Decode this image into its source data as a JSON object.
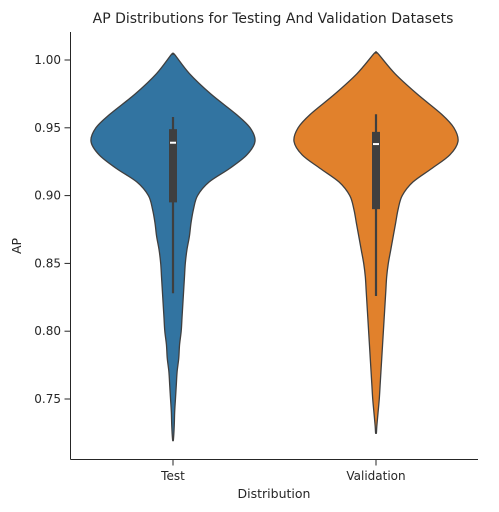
{
  "chart_data": {
    "type": "violin",
    "title": "AP Distributions for Testing And Validation Datasets",
    "xlabel": "Distribution",
    "ylabel": "AP",
    "ylim": [
      0.705,
      1.02
    ],
    "yticks": [
      0.75,
      0.8,
      0.85,
      0.9,
      0.95,
      1.0
    ],
    "ytick_labels": [
      "0.75",
      "0.80",
      "0.85",
      "0.90",
      "0.95",
      "1.00"
    ],
    "categories": [
      "Test",
      "Validation"
    ],
    "grid": false,
    "series": [
      {
        "category": "Test",
        "color": "#3274a1",
        "min": 0.72,
        "max": 1.004,
        "whisker_low": 0.828,
        "q1": 0.895,
        "median": 0.939,
        "q3": 0.949,
        "whisker_high": 0.958,
        "density": [
          [
            1.004,
            0.02
          ],
          [
            0.99,
            0.2
          ],
          [
            0.975,
            0.46
          ],
          [
            0.96,
            0.77
          ],
          [
            0.95,
            0.94
          ],
          [
            0.94,
            1.0
          ],
          [
            0.93,
            0.9
          ],
          [
            0.92,
            0.69
          ],
          [
            0.91,
            0.44
          ],
          [
            0.9,
            0.3
          ],
          [
            0.89,
            0.25
          ],
          [
            0.88,
            0.22
          ],
          [
            0.87,
            0.2
          ],
          [
            0.86,
            0.17
          ],
          [
            0.85,
            0.15
          ],
          [
            0.84,
            0.14
          ],
          [
            0.83,
            0.13
          ],
          [
            0.82,
            0.12
          ],
          [
            0.81,
            0.11
          ],
          [
            0.8,
            0.1
          ],
          [
            0.79,
            0.08
          ],
          [
            0.78,
            0.07
          ],
          [
            0.77,
            0.05
          ],
          [
            0.76,
            0.04
          ],
          [
            0.75,
            0.03
          ],
          [
            0.74,
            0.02
          ],
          [
            0.73,
            0.015
          ],
          [
            0.72,
            0.005
          ]
        ]
      },
      {
        "category": "Validation",
        "color": "#e1812c",
        "min": 0.725,
        "max": 1.005,
        "whisker_low": 0.826,
        "q1": 0.89,
        "median": 0.938,
        "q3": 0.947,
        "whisker_high": 0.96,
        "density": [
          [
            1.005,
            0.02
          ],
          [
            0.99,
            0.23
          ],
          [
            0.975,
            0.5
          ],
          [
            0.96,
            0.8
          ],
          [
            0.95,
            0.95
          ],
          [
            0.94,
            1.0
          ],
          [
            0.93,
            0.9
          ],
          [
            0.92,
            0.68
          ],
          [
            0.91,
            0.45
          ],
          [
            0.9,
            0.32
          ],
          [
            0.89,
            0.27
          ],
          [
            0.88,
            0.24
          ],
          [
            0.87,
            0.21
          ],
          [
            0.86,
            0.18
          ],
          [
            0.85,
            0.15
          ],
          [
            0.84,
            0.13
          ],
          [
            0.83,
            0.12
          ],
          [
            0.82,
            0.11
          ],
          [
            0.81,
            0.1
          ],
          [
            0.8,
            0.09
          ],
          [
            0.79,
            0.08
          ],
          [
            0.78,
            0.07
          ],
          [
            0.77,
            0.06
          ],
          [
            0.76,
            0.05
          ],
          [
            0.75,
            0.04
          ],
          [
            0.74,
            0.025
          ],
          [
            0.73,
            0.01
          ],
          [
            0.725,
            0.005
          ]
        ]
      }
    ]
  }
}
